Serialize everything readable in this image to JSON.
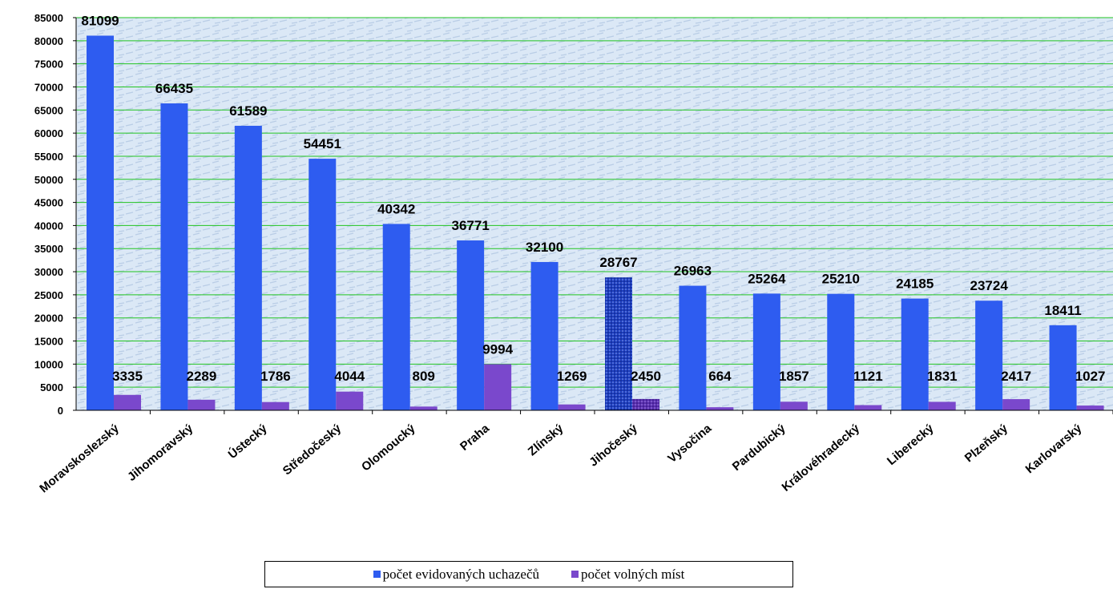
{
  "chart_data": {
    "type": "bar",
    "categories": [
      "Moravskoslezský",
      "Jihomoravský",
      "Ústecký",
      "Středočeský",
      "Olomoucký",
      "Praha",
      "Zlínský",
      "Jihočeský",
      "Vysočina",
      "Pardubický",
      "Královéhradecký",
      "Liberecký",
      "Plzeňský",
      "Karlovarský"
    ],
    "series": [
      {
        "name": "počet evidovaných uchazečů",
        "color": "#2e5cf0",
        "values": [
          81099,
          66435,
          61589,
          54451,
          40342,
          36771,
          32100,
          28767,
          26963,
          25264,
          25210,
          24185,
          23724,
          18411
        ]
      },
      {
        "name": "počet volných míst",
        "color": "#7a48cc",
        "values": [
          3335,
          2289,
          1786,
          4044,
          809,
          9994,
          1269,
          2450,
          664,
          1857,
          1121,
          1831,
          2417,
          1027
        ]
      }
    ],
    "ylim": [
      0,
      85000
    ],
    "ytick_step": 5000,
    "grid": true,
    "grid_color": "#22c422",
    "legend_position": "bottom",
    "highlighted_category": "Jihočeský"
  }
}
